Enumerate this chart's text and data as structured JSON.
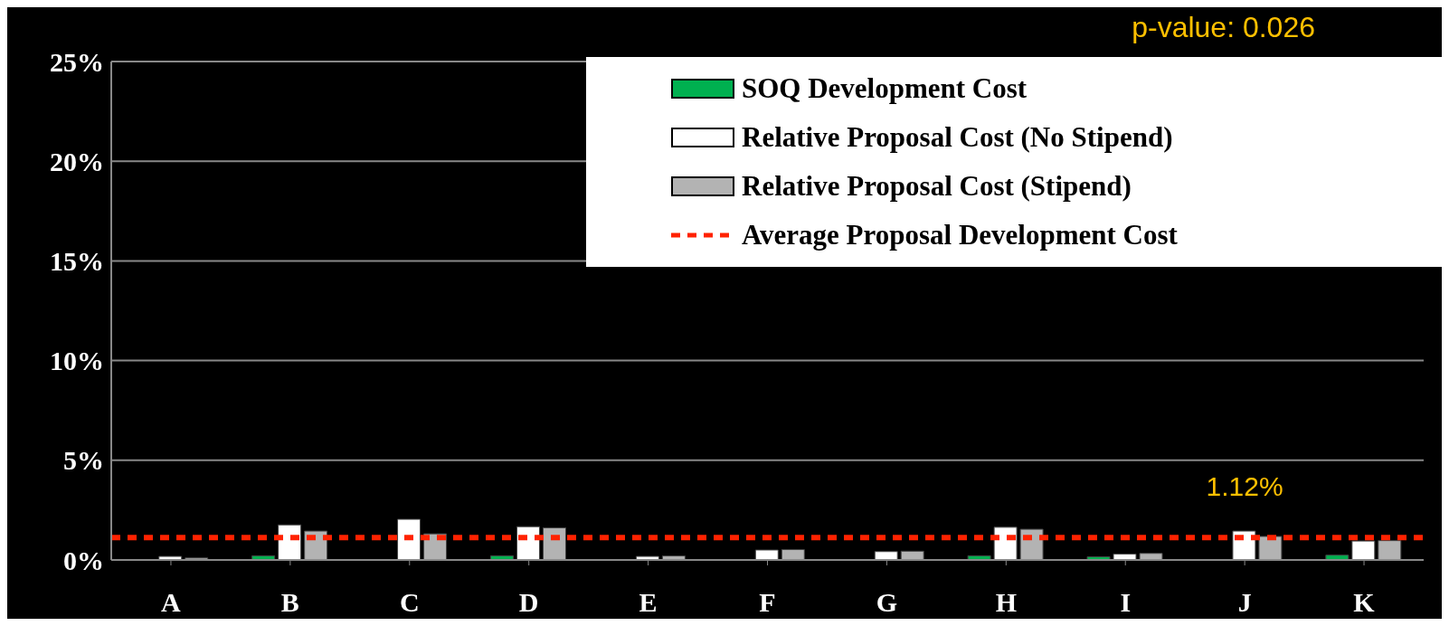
{
  "chart_data": {
    "type": "bar",
    "categories": [
      "A",
      "B",
      "C",
      "D",
      "E",
      "F",
      "G",
      "H",
      "I",
      "J",
      "K"
    ],
    "series": [
      {
        "name": "SOQ Development Cost",
        "color": "#00b050",
        "values": [
          0,
          0.21,
          0,
          0.21,
          0,
          0,
          0,
          0.21,
          0.16,
          0,
          0.24
        ]
      },
      {
        "name": "Relative Proposal Cost (No Stipend)",
        "color": "#ffffff",
        "values": [
          0.18,
          1.76,
          2.04,
          1.67,
          0.18,
          0.5,
          0.42,
          1.64,
          0.3,
          1.45,
          0.95
        ]
      },
      {
        "name": "Relative Proposal Cost (Stipend)",
        "color": "#b3b3b3",
        "values": [
          0.1,
          1.45,
          1.31,
          1.61,
          0.2,
          0.52,
          0.44,
          1.54,
          0.33,
          1.18,
          0.97
        ]
      }
    ],
    "ref_lines": [
      {
        "axis": "y",
        "value": 1.12,
        "label": "Average Proposal Development Cost",
        "color": "#ff2200",
        "line_style": "dashed"
      }
    ],
    "annotations": [
      "p-value: 0.026",
      {
        "text": "1.12%",
        "x": "J",
        "y": 1.12
      }
    ],
    "ylim": [
      0,
      25
    ],
    "yticks": [
      {
        "value": 0,
        "label": "0%"
      },
      {
        "value": 5,
        "label": "5%"
      },
      {
        "value": 10,
        "label": "10%"
      },
      {
        "value": 15,
        "label": "15%"
      },
      {
        "value": 20,
        "label": "20%"
      },
      {
        "value": 25,
        "label": "25%"
      }
    ],
    "grid": "y",
    "legend": "top right"
  }
}
